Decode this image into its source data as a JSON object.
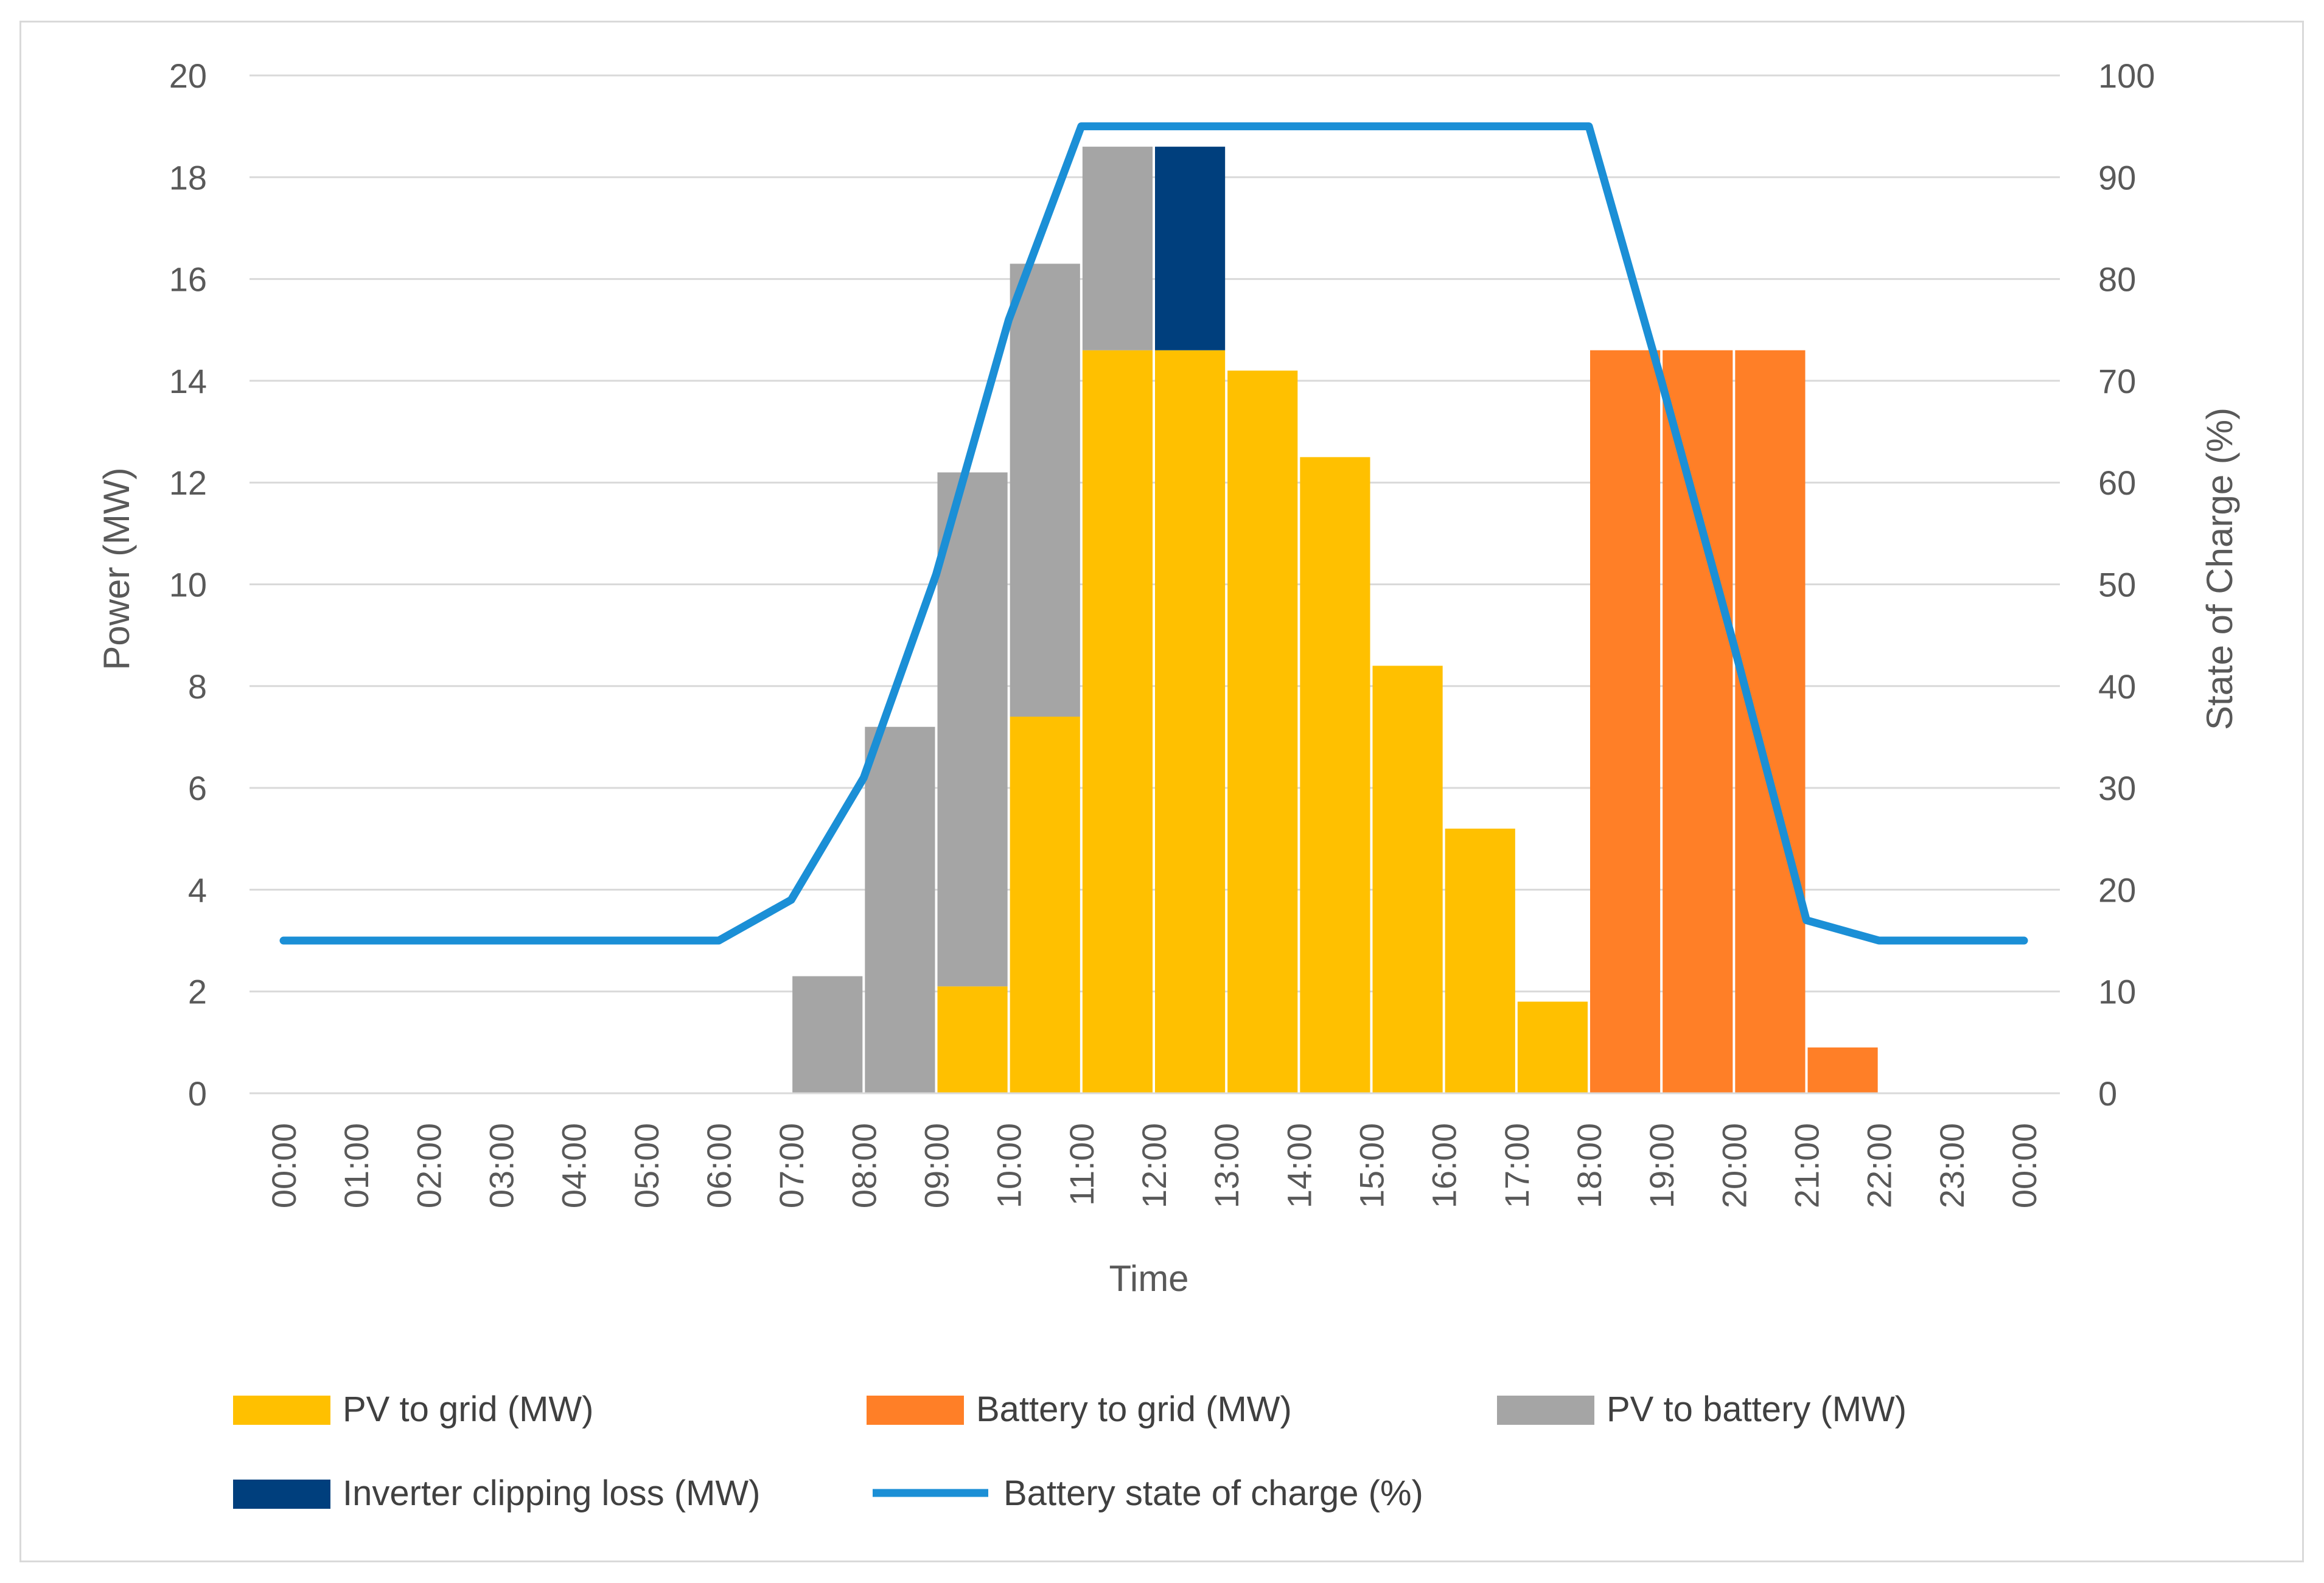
{
  "chart_data": {
    "type": "bar",
    "stacked": true,
    "title": "",
    "xlabel": "Time",
    "ylabel": "Power (MW)",
    "y2label": "State of Charge (%)",
    "ylim": [
      0,
      20
    ],
    "y2lim": [
      0,
      100
    ],
    "yticks": [
      "0",
      "2",
      "4",
      "6",
      "8",
      "10",
      "12",
      "14",
      "16",
      "18",
      "20"
    ],
    "y2ticks": [
      "0",
      "10",
      "20",
      "30",
      "40",
      "50",
      "60",
      "70",
      "80",
      "90",
      "100"
    ],
    "grid": true,
    "legend_position": "bottom",
    "x_tick_labels": [
      "00:00",
      "01:00",
      "02:00",
      "03:00",
      "04:00",
      "05:00",
      "06:00",
      "07:00",
      "08:00",
      "09:00",
      "10:00",
      "11:00",
      "12:00",
      "13:00",
      "14:00",
      "15:00",
      "16:00",
      "17:00",
      "18:00",
      "19:00",
      "20:00",
      "21:00",
      "22:00",
      "23:00",
      "00:00"
    ],
    "categories": [
      "00:30",
      "01:30",
      "02:30",
      "03:30",
      "04:30",
      "05:30",
      "06:30",
      "07:30",
      "08:30",
      "09:30",
      "10:30",
      "11:30",
      "12:30",
      "13:30",
      "14:30",
      "15:30",
      "16:30",
      "17:30",
      "18:30",
      "19:30",
      "20:30",
      "21:30",
      "22:30",
      "23:30"
    ],
    "series": [
      {
        "name": "PV to grid  (MW)",
        "kind": "bar",
        "color": "#FFC000",
        "values": [
          0,
          0,
          0,
          0,
          0,
          0,
          0,
          0,
          0,
          2.1,
          7.4,
          14.6,
          14.6,
          14.2,
          12.5,
          8.4,
          5.2,
          1.8,
          0,
          0,
          0,
          0,
          0,
          0
        ]
      },
      {
        "name": "Battery to grid (MW)",
        "kind": "bar",
        "color": "#FF7F27",
        "values": [
          0,
          0,
          0,
          0,
          0,
          0,
          0,
          0,
          0,
          0,
          0,
          0,
          0,
          0,
          0,
          0,
          0,
          0,
          14.6,
          14.6,
          14.6,
          0.9,
          0,
          0
        ]
      },
      {
        "name": "PV to battery (MW)",
        "kind": "bar",
        "color": "#A5A5A5",
        "values": [
          0,
          0,
          0,
          0,
          0,
          0,
          0,
          2.3,
          7.2,
          10.1,
          8.9,
          4.0,
          0,
          0,
          0,
          0,
          0,
          0,
          0,
          0,
          0,
          0,
          0,
          0
        ]
      },
      {
        "name": "Inverter clipping loss (MW)",
        "kind": "bar",
        "color": "#003F7D",
        "values": [
          0,
          0,
          0,
          0,
          0,
          0,
          0,
          0,
          0,
          0,
          0,
          0,
          4.0,
          0,
          0,
          0,
          0,
          0,
          0,
          0,
          0,
          0,
          0,
          0
        ]
      },
      {
        "name": "Battery state of charge (%)",
        "kind": "line",
        "axis": "right",
        "color": "#1B8FD6",
        "x": [
          "00:00",
          "01:00",
          "02:00",
          "03:00",
          "04:00",
          "05:00",
          "06:00",
          "07:00",
          "08:00",
          "09:00",
          "10:00",
          "11:00",
          "12:00",
          "13:00",
          "14:00",
          "15:00",
          "16:00",
          "17:00",
          "18:00",
          "19:00",
          "20:00",
          "21:00",
          "22:00",
          "23:00",
          "00:00"
        ],
        "values": [
          15,
          15,
          15,
          15,
          15,
          15,
          15,
          19,
          31,
          51,
          76,
          95,
          95,
          95,
          95,
          95,
          95,
          95,
          95,
          70,
          44,
          17,
          15,
          15,
          15
        ]
      }
    ],
    "legend_order": [
      0,
      1,
      2,
      3,
      4
    ]
  }
}
